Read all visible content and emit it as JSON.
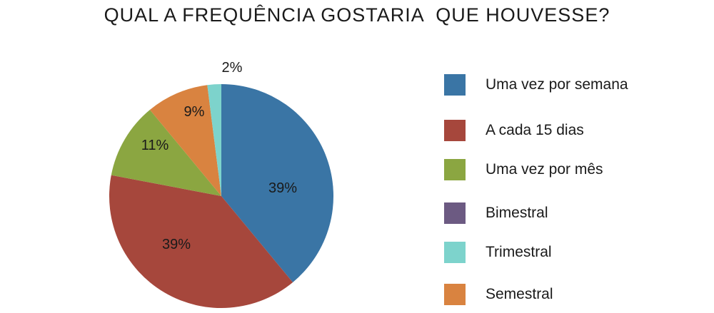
{
  "chart_data": {
    "type": "pie",
    "title": "QUAL A FREQUÊNCIA GOSTARIA  QUE HOUVESSE?",
    "categories": [
      "Uma vez por semana",
      "A cada 15 dias",
      "Uma vez por mês",
      "Bimestral",
      "Trimestral",
      "Semestral"
    ],
    "values": [
      39,
      39,
      11,
      0,
      2,
      9
    ],
    "labels": [
      "39%",
      "39%",
      "11%",
      "",
      "2%",
      "9%"
    ],
    "colors": [
      "#3a75a5",
      "#a6473c",
      "#8ba641",
      "#6c5a82",
      "#7dd3cc",
      "#d98340"
    ],
    "legend_position": "right"
  }
}
